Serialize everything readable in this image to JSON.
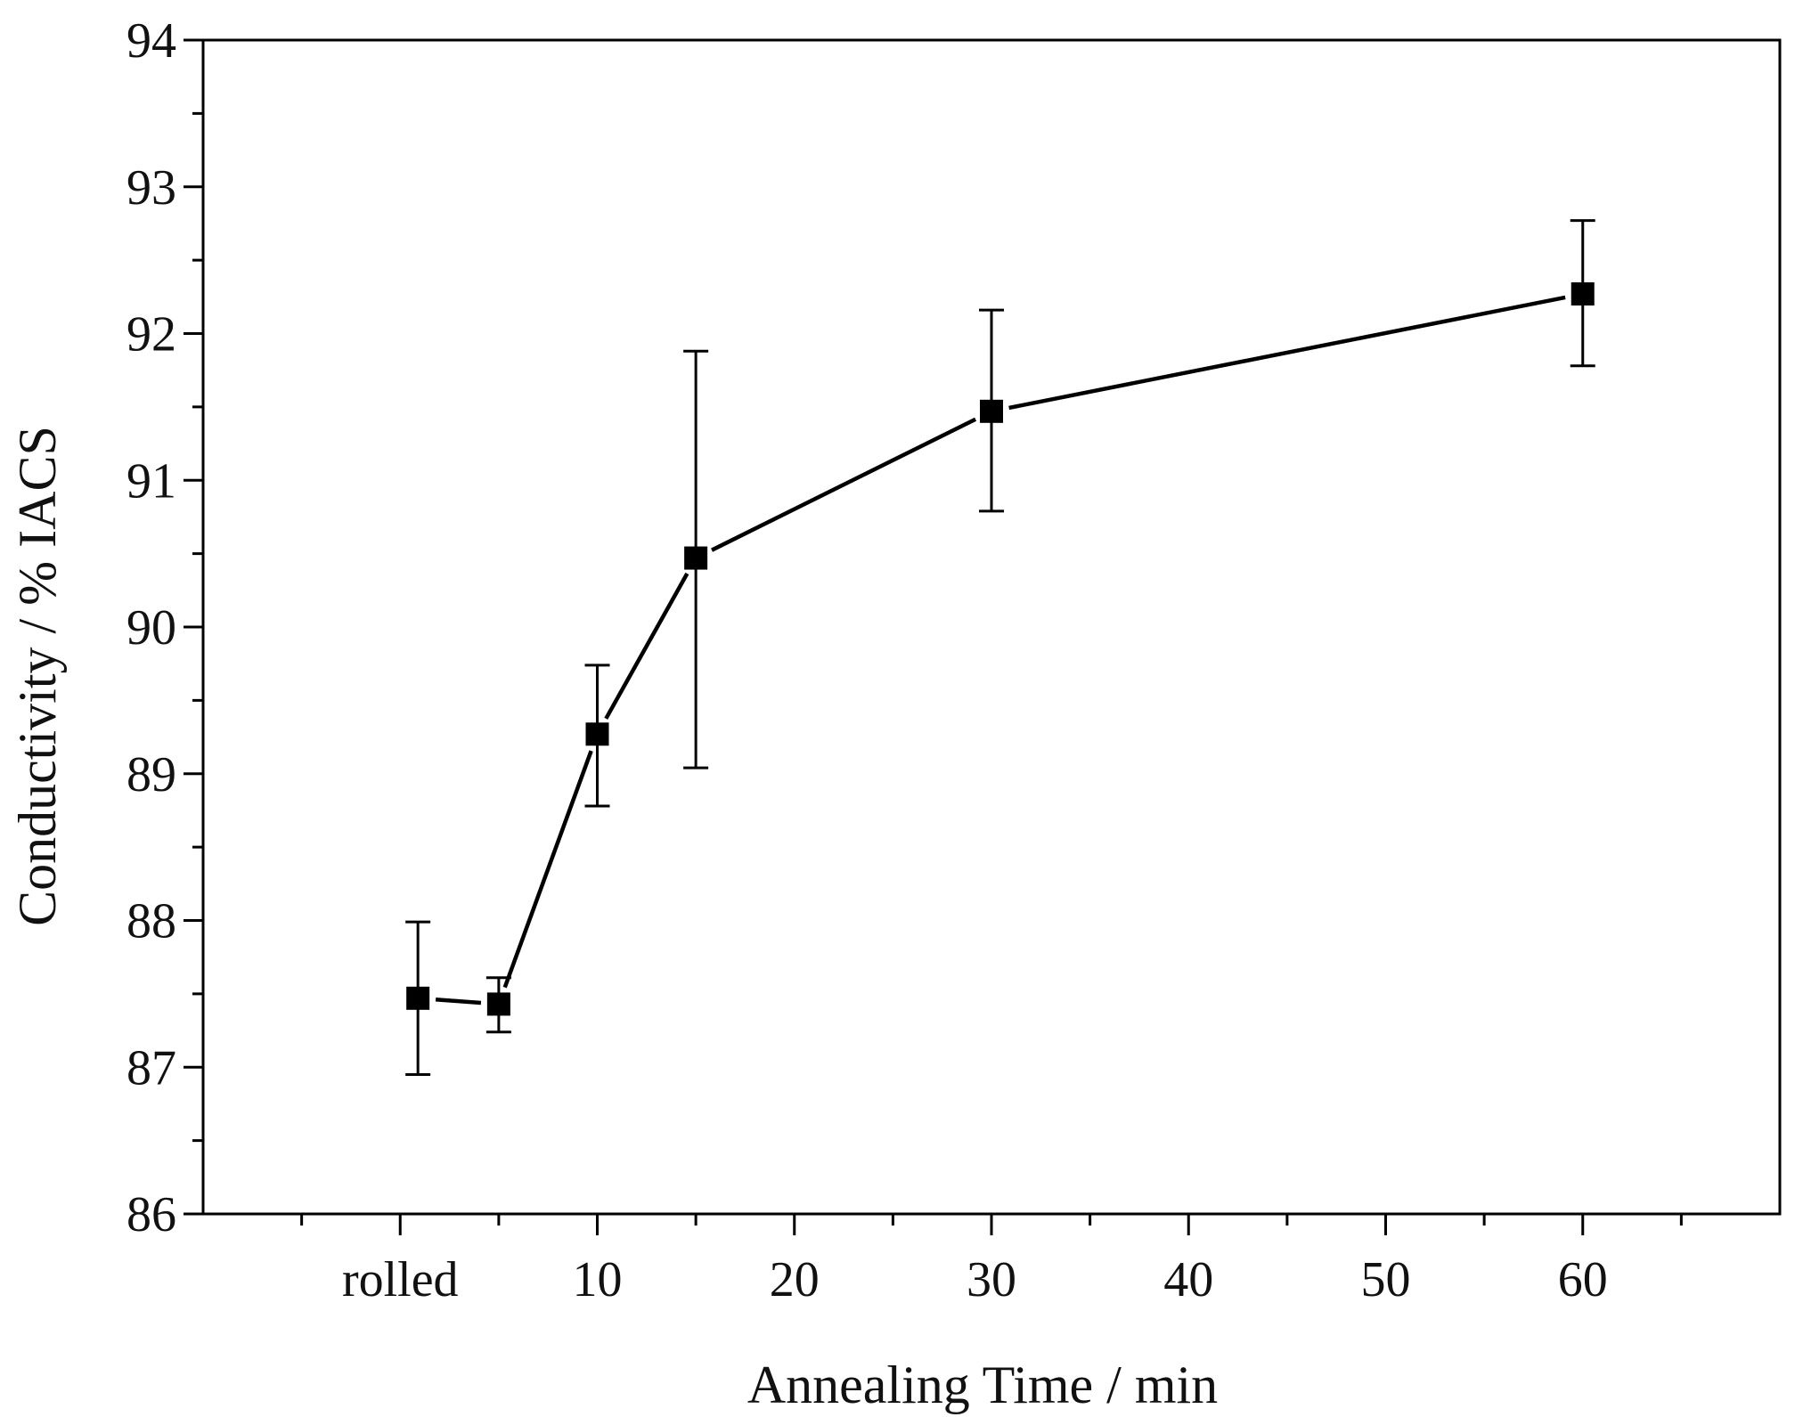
{
  "chart_data": {
    "type": "line",
    "title": "",
    "xlabel": "Annealing Time / min",
    "ylabel": "Conductivity / % IACS",
    "xlim": [
      -10,
      70
    ],
    "ylim": [
      86,
      94
    ],
    "grid": false,
    "legend": "none",
    "x_ticks": [
      {
        "value": 0,
        "label": "rolled"
      },
      {
        "value": 10,
        "label": "10"
      },
      {
        "value": 20,
        "label": "20"
      },
      {
        "value": 30,
        "label": "30"
      },
      {
        "value": 40,
        "label": "40"
      },
      {
        "value": 50,
        "label": "50"
      },
      {
        "value": 60,
        "label": "60"
      }
    ],
    "x_minor_ticks": [
      -5,
      5,
      15,
      25,
      35,
      45,
      55,
      65
    ],
    "y_ticks": [
      86,
      87,
      88,
      89,
      90,
      91,
      92,
      93,
      94
    ],
    "y_minor_step": 0.5,
    "series": [
      {
        "name": "Conductivity",
        "marker": "square",
        "color": "#000000",
        "points": [
          {
            "x": 0.9,
            "y": 87.47,
            "err_low": 86.95,
            "err_high": 87.99
          },
          {
            "x": 5,
            "y": 87.43,
            "err_low": 87.24,
            "err_high": 87.61
          },
          {
            "x": 10,
            "y": 89.27,
            "err_low": 88.78,
            "err_high": 89.74
          },
          {
            "x": 15,
            "y": 90.47,
            "err_low": 89.04,
            "err_high": 91.88
          },
          {
            "x": 30,
            "y": 91.47,
            "err_low": 90.79,
            "err_high": 92.16
          },
          {
            "x": 60,
            "y": 92.27,
            "err_low": 91.78,
            "err_high": 92.77
          }
        ]
      }
    ]
  }
}
